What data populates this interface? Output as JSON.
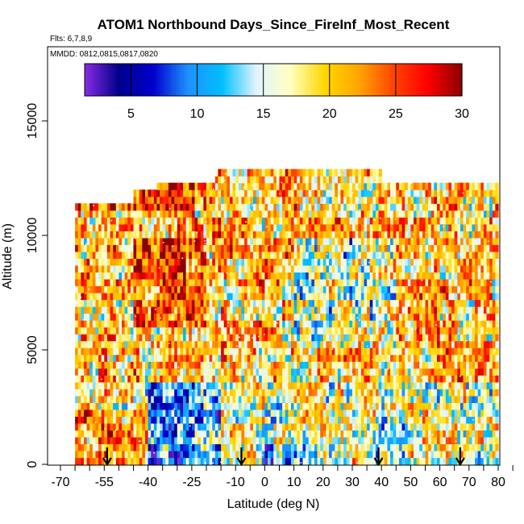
{
  "chart_data": {
    "type": "heatmap",
    "title": "ATOM1 Northbound Days_Since_FireInf_Most_Recent",
    "subtitle_flights": "Flts: 6,7,8,9",
    "subtitle_dates": "MMDD: 0812,0815,0817,0820",
    "xlabel": "Latitude (deg N)",
    "ylabel": "Altitude (m)",
    "xlim": [
      -70,
      85
    ],
    "ylim": [
      0,
      17500
    ],
    "x_ticks": [
      -70,
      -55,
      -40,
      -25,
      -10,
      0,
      10,
      20,
      30,
      40,
      50,
      60,
      70,
      80
    ],
    "x_tick_labels": [
      "-70",
      "-55",
      "-40",
      "-25",
      "-10",
      "0",
      "10",
      "20",
      "30",
      "40",
      "50",
      "60",
      "70",
      "80"
    ],
    "y_ticks": [
      0,
      5000,
      10000,
      15000
    ],
    "y_tick_labels": [
      "0",
      "5000",
      "10000",
      "15000"
    ],
    "colorbar": {
      "range": [
        1.5,
        30
      ],
      "ticks": [
        5,
        10,
        15,
        20,
        25,
        30
      ],
      "tick_labels": [
        "5",
        "10",
        "15",
        "20",
        "25",
        "30"
      ],
      "colors": [
        "#8a2be2",
        "#00008b",
        "#0000cd",
        "#1e90ff",
        "#00bfff",
        "#e0f4ff",
        "#ffffc0",
        "#ffd700",
        "#ffa500",
        "#ff4500",
        "#ff0000",
        "#8b0000"
      ]
    },
    "flight_track_x_extent": [
      -65,
      80
    ],
    "top_altitude_by_latitude": [
      {
        "lat": -65,
        "alt": 11400
      },
      {
        "lat": -45,
        "alt": 11900
      },
      {
        "lat": -37,
        "alt": 12300
      },
      {
        "lat": -17,
        "alt": 12900
      },
      {
        "lat": 38,
        "alt": 12900
      },
      {
        "lat": 40,
        "alt": 12300
      },
      {
        "lat": 78,
        "alt": 12300
      },
      {
        "lat": 80,
        "alt": 11300
      }
    ],
    "profile_arrow_latitudes": [
      -54,
      -8,
      39,
      67
    ],
    "grid": false,
    "legend_position": "top"
  }
}
